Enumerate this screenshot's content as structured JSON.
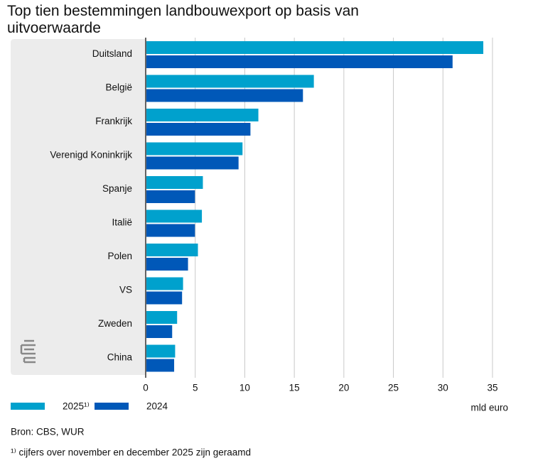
{
  "chart_data": {
    "type": "hbar",
    "title": "Top tien bestemmingen landbouwexport op basis van uitvoerwaarde",
    "categories": [
      "Duitsland",
      "België",
      "Frankrijk",
      "Verenigd Koninkrijk",
      "Spanje",
      "Italië",
      "Polen",
      "VS",
      "Zweden",
      "China"
    ],
    "series": [
      {
        "name": "2025¹⁾",
        "color": "#00a1cd",
        "values": [
          34.0,
          16.9,
          11.3,
          9.7,
          5.7,
          5.6,
          5.2,
          3.7,
          3.1,
          2.9
        ]
      },
      {
        "name": "2024",
        "color": "#0058b8",
        "values": [
          30.9,
          15.8,
          10.5,
          9.3,
          4.9,
          4.9,
          4.2,
          3.6,
          2.6,
          2.8
        ]
      }
    ],
    "xlim": [
      0,
      35
    ],
    "xticks": [
      0,
      5,
      10,
      15,
      20,
      25,
      30,
      35
    ],
    "grid": true,
    "xlabel": "mld euro",
    "legend": "bottom-left",
    "source": "Bron: CBS, WUR",
    "footnote": "¹⁾ cijfers over november en december 2025 zijn geraamd"
  }
}
